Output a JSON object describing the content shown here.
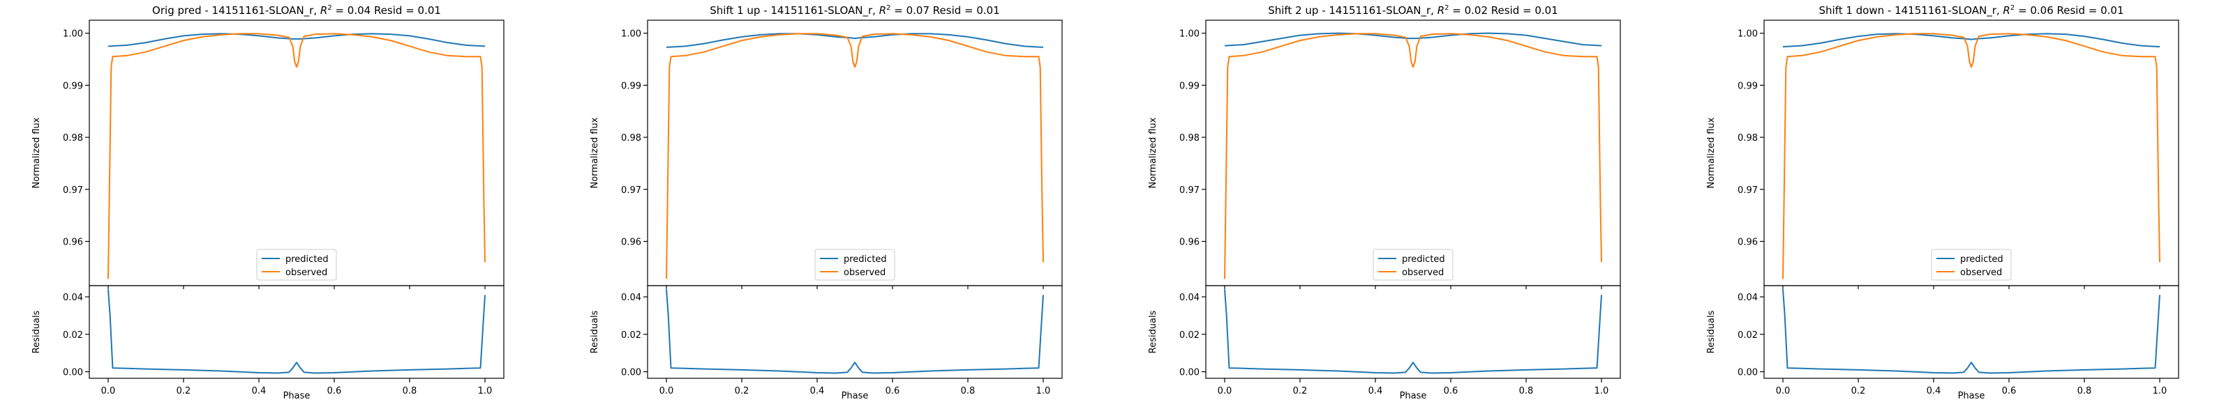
{
  "figure": {
    "xlabel": "Phase",
    "ylabel_top": "Normalized flux",
    "ylabel_bottom": "Residuals",
    "legend": [
      "predicted",
      "observed"
    ],
    "colors": {
      "predicted": "#1f77b4",
      "observed": "#ff7f0e",
      "axes": "#000000"
    }
  },
  "chart_data": [
    {
      "type": "line",
      "title_prefix": "Orig pred - 14151161-SLOAN_r, ",
      "r2_text": "0.04",
      "resid_text": "0.01",
      "xlim": [
        -0.05,
        1.05
      ],
      "ylim_top": [
        0.9515,
        1.0025
      ],
      "ylim_bottom": [
        -0.0035,
        0.046
      ],
      "xticks": [
        "0.0",
        "0.2",
        "0.4",
        "0.6",
        "0.8",
        "1.0"
      ],
      "yticks_top": [
        "0.96",
        "0.97",
        "0.98",
        "0.99",
        "1.00"
      ],
      "yticks_bottom": [
        "0.00",
        "0.02",
        "0.04"
      ],
      "legend_position": "lower center",
      "series": [
        {
          "name": "predicted",
          "x": [
            0,
            0.05,
            0.1,
            0.15,
            0.2,
            0.25,
            0.3,
            0.35,
            0.4,
            0.45,
            0.49,
            0.5,
            0.51,
            0.55,
            0.6,
            0.65,
            0.7,
            0.75,
            0.8,
            0.85,
            0.9,
            0.95,
            1.0
          ],
          "y": [
            0.9975,
            0.9977,
            0.9982,
            0.9989,
            0.9995,
            0.9998,
            0.9999,
            0.9998,
            0.9995,
            0.9991,
            0.9989,
            0.9989,
            0.9989,
            0.9991,
            0.9995,
            0.9998,
            0.9999,
            0.9998,
            0.9995,
            0.9989,
            0.9982,
            0.9977,
            0.9975
          ]
        },
        {
          "name": "observed",
          "x": [
            0,
            0.003,
            0.008,
            0.012,
            0.05,
            0.1,
            0.15,
            0.2,
            0.25,
            0.3,
            0.35,
            0.4,
            0.45,
            0.48,
            0.49,
            0.495,
            0.5,
            0.505,
            0.51,
            0.52,
            0.55,
            0.6,
            0.65,
            0.7,
            0.75,
            0.8,
            0.85,
            0.9,
            0.95,
            0.988,
            0.992,
            0.997,
            1.0
          ],
          "y": [
            0.9528,
            0.968,
            0.9935,
            0.9955,
            0.9957,
            0.9964,
            0.9975,
            0.9986,
            0.9993,
            0.9997,
            0.9999,
            0.9999,
            0.9996,
            0.9992,
            0.9975,
            0.9945,
            0.9935,
            0.9945,
            0.9975,
            0.9994,
            0.9998,
            0.9999,
            0.9997,
            0.9993,
            0.9986,
            0.9975,
            0.9964,
            0.9957,
            0.9955,
            0.9955,
            0.9935,
            0.968,
            0.956
          ]
        },
        {
          "name": "residuals",
          "x": [
            0,
            0.005,
            0.012,
            0.05,
            0.1,
            0.2,
            0.3,
            0.4,
            0.45,
            0.48,
            0.49,
            0.5,
            0.51,
            0.52,
            0.55,
            0.6,
            0.7,
            0.8,
            0.9,
            0.95,
            0.988,
            0.995,
            1.0
          ],
          "y": [
            0.044,
            0.03,
            0.002,
            0.0018,
            0.0015,
            0.001,
            0.0004,
            -0.0005,
            -0.0007,
            -0.0003,
            0.002,
            0.005,
            0.002,
            -0.0003,
            -0.0007,
            -0.0005,
            0.0004,
            0.001,
            0.0015,
            0.0018,
            0.002,
            0.025,
            0.041
          ]
        }
      ]
    },
    {
      "type": "line",
      "title_prefix": "Shift 1 up - 14151161-SLOAN_r, ",
      "r2_text": "0.07",
      "resid_text": "0.01",
      "xlim": [
        -0.05,
        1.05
      ],
      "ylim_top": [
        0.9515,
        1.0025
      ],
      "ylim_bottom": [
        -0.0035,
        0.046
      ],
      "xticks": [
        "0.0",
        "0.2",
        "0.4",
        "0.6",
        "0.8",
        "1.0"
      ],
      "yticks_top": [
        "0.96",
        "0.97",
        "0.98",
        "0.99",
        "1.00"
      ],
      "yticks_bottom": [
        "0.00",
        "0.02",
        "0.04"
      ],
      "legend_position": "lower center",
      "series": [
        {
          "name": "predicted",
          "x": [
            0,
            0.05,
            0.1,
            0.15,
            0.2,
            0.25,
            0.3,
            0.35,
            0.4,
            0.45,
            0.49,
            0.5,
            0.51,
            0.55,
            0.6,
            0.65,
            0.7,
            0.75,
            0.8,
            0.85,
            0.9,
            0.95,
            1.0
          ],
          "y": [
            0.9973,
            0.9975,
            0.998,
            0.9987,
            0.9993,
            0.9997,
            0.9999,
            0.9999,
            0.9997,
            0.9993,
            0.9991,
            0.999,
            0.9991,
            0.9993,
            0.9997,
            0.9999,
            0.9999,
            0.9997,
            0.9993,
            0.9987,
            0.998,
            0.9975,
            0.9973
          ]
        },
        {
          "name": "observed",
          "x": [
            0,
            0.003,
            0.008,
            0.012,
            0.05,
            0.1,
            0.15,
            0.2,
            0.25,
            0.3,
            0.35,
            0.4,
            0.45,
            0.48,
            0.49,
            0.495,
            0.5,
            0.505,
            0.51,
            0.52,
            0.55,
            0.6,
            0.65,
            0.7,
            0.75,
            0.8,
            0.85,
            0.9,
            0.95,
            0.988,
            0.992,
            0.997,
            1.0
          ],
          "y": [
            0.9528,
            0.968,
            0.9935,
            0.9955,
            0.9957,
            0.9964,
            0.9975,
            0.9986,
            0.9993,
            0.9997,
            0.9999,
            0.9999,
            0.9996,
            0.9992,
            0.9975,
            0.9945,
            0.9935,
            0.9945,
            0.9975,
            0.9994,
            0.9998,
            0.9999,
            0.9997,
            0.9993,
            0.9986,
            0.9975,
            0.9964,
            0.9957,
            0.9955,
            0.9955,
            0.9935,
            0.968,
            0.956
          ]
        },
        {
          "name": "residuals",
          "x": [
            0,
            0.005,
            0.012,
            0.05,
            0.1,
            0.2,
            0.3,
            0.4,
            0.45,
            0.48,
            0.49,
            0.5,
            0.51,
            0.52,
            0.55,
            0.6,
            0.7,
            0.8,
            0.9,
            0.95,
            0.988,
            0.995,
            1.0
          ],
          "y": [
            0.044,
            0.03,
            0.002,
            0.0018,
            0.0015,
            0.001,
            0.0004,
            -0.0005,
            -0.0007,
            -0.0003,
            0.002,
            0.005,
            0.002,
            -0.0003,
            -0.0007,
            -0.0005,
            0.0004,
            0.001,
            0.0015,
            0.0018,
            0.002,
            0.025,
            0.041
          ]
        }
      ]
    },
    {
      "type": "line",
      "title_prefix": "Shift 2 up - 14151161-SLOAN_r, ",
      "r2_text": "0.02",
      "resid_text": "0.01",
      "xlim": [
        -0.05,
        1.05
      ],
      "ylim_top": [
        0.9515,
        1.0025
      ],
      "ylim_bottom": [
        -0.0035,
        0.046
      ],
      "xticks": [
        "0.0",
        "0.2",
        "0.4",
        "0.6",
        "0.8",
        "1.0"
      ],
      "yticks_top": [
        "0.96",
        "0.97",
        "0.98",
        "0.99",
        "1.00"
      ],
      "yticks_bottom": [
        "0.00",
        "0.02",
        "0.04"
      ],
      "legend_position": "lower center",
      "series": [
        {
          "name": "predicted",
          "x": [
            0,
            0.05,
            0.1,
            0.15,
            0.2,
            0.25,
            0.3,
            0.35,
            0.4,
            0.45,
            0.49,
            0.5,
            0.51,
            0.55,
            0.6,
            0.65,
            0.7,
            0.75,
            0.8,
            0.85,
            0.9,
            0.95,
            1.0
          ],
          "y": [
            0.9976,
            0.9978,
            0.9984,
            0.999,
            0.9996,
            0.9999,
            1.0,
            0.9999,
            0.9996,
            0.9992,
            0.999,
            0.999,
            0.999,
            0.9992,
            0.9996,
            0.9999,
            1.0,
            0.9999,
            0.9996,
            0.999,
            0.9984,
            0.9978,
            0.9976
          ]
        },
        {
          "name": "observed",
          "x": [
            0,
            0.003,
            0.008,
            0.012,
            0.05,
            0.1,
            0.15,
            0.2,
            0.25,
            0.3,
            0.35,
            0.4,
            0.45,
            0.48,
            0.49,
            0.495,
            0.5,
            0.505,
            0.51,
            0.52,
            0.55,
            0.6,
            0.65,
            0.7,
            0.75,
            0.8,
            0.85,
            0.9,
            0.95,
            0.988,
            0.992,
            0.997,
            1.0
          ],
          "y": [
            0.9528,
            0.968,
            0.9935,
            0.9955,
            0.9957,
            0.9964,
            0.9975,
            0.9986,
            0.9993,
            0.9997,
            0.9999,
            0.9999,
            0.9996,
            0.9992,
            0.9975,
            0.9945,
            0.9935,
            0.9945,
            0.9975,
            0.9994,
            0.9998,
            0.9999,
            0.9997,
            0.9993,
            0.9986,
            0.9975,
            0.9964,
            0.9957,
            0.9955,
            0.9955,
            0.9935,
            0.968,
            0.956
          ]
        },
        {
          "name": "residuals",
          "x": [
            0,
            0.005,
            0.012,
            0.05,
            0.1,
            0.2,
            0.3,
            0.4,
            0.45,
            0.48,
            0.49,
            0.5,
            0.51,
            0.52,
            0.55,
            0.6,
            0.7,
            0.8,
            0.9,
            0.95,
            0.988,
            0.995,
            1.0
          ],
          "y": [
            0.044,
            0.03,
            0.002,
            0.0018,
            0.0015,
            0.001,
            0.0004,
            -0.0005,
            -0.0007,
            -0.0003,
            0.002,
            0.005,
            0.002,
            -0.0003,
            -0.0007,
            -0.0005,
            0.0004,
            0.001,
            0.0015,
            0.0018,
            0.002,
            0.025,
            0.041
          ]
        }
      ]
    },
    {
      "type": "line",
      "title_prefix": "Shift 1 down - 14151161-SLOAN_r, ",
      "r2_text": "0.06",
      "resid_text": "0.01",
      "xlim": [
        -0.05,
        1.05
      ],
      "ylim_top": [
        0.9515,
        1.0025
      ],
      "ylim_bottom": [
        -0.0035,
        0.046
      ],
      "xticks": [
        "0.0",
        "0.2",
        "0.4",
        "0.6",
        "0.8",
        "1.0"
      ],
      "yticks_top": [
        "0.96",
        "0.97",
        "0.98",
        "0.99",
        "1.00"
      ],
      "yticks_bottom": [
        "0.00",
        "0.02",
        "0.04"
      ],
      "legend_position": "lower center",
      "series": [
        {
          "name": "predicted",
          "x": [
            0,
            0.05,
            0.1,
            0.15,
            0.2,
            0.25,
            0.3,
            0.35,
            0.4,
            0.45,
            0.49,
            0.5,
            0.51,
            0.55,
            0.6,
            0.65,
            0.7,
            0.75,
            0.8,
            0.85,
            0.9,
            0.95,
            1.0
          ],
          "y": [
            0.9974,
            0.9976,
            0.9981,
            0.9988,
            0.9994,
            0.9998,
            0.9999,
            0.9998,
            0.9995,
            0.9991,
            0.9989,
            0.9988,
            0.9989,
            0.9991,
            0.9995,
            0.9998,
            0.9999,
            0.9998,
            0.9994,
            0.9988,
            0.9981,
            0.9976,
            0.9974
          ]
        },
        {
          "name": "observed",
          "x": [
            0,
            0.003,
            0.008,
            0.012,
            0.05,
            0.1,
            0.15,
            0.2,
            0.25,
            0.3,
            0.35,
            0.4,
            0.45,
            0.48,
            0.49,
            0.495,
            0.5,
            0.505,
            0.51,
            0.52,
            0.55,
            0.6,
            0.65,
            0.7,
            0.75,
            0.8,
            0.85,
            0.9,
            0.95,
            0.988,
            0.992,
            0.997,
            1.0
          ],
          "y": [
            0.9528,
            0.968,
            0.9935,
            0.9955,
            0.9957,
            0.9964,
            0.9975,
            0.9986,
            0.9993,
            0.9997,
            0.9999,
            0.9999,
            0.9996,
            0.9992,
            0.9975,
            0.9945,
            0.9935,
            0.9945,
            0.9975,
            0.9994,
            0.9998,
            0.9999,
            0.9997,
            0.9993,
            0.9986,
            0.9975,
            0.9964,
            0.9957,
            0.9955,
            0.9955,
            0.9935,
            0.968,
            0.956
          ]
        },
        {
          "name": "residuals",
          "x": [
            0,
            0.005,
            0.012,
            0.05,
            0.1,
            0.2,
            0.3,
            0.4,
            0.45,
            0.48,
            0.49,
            0.5,
            0.51,
            0.52,
            0.55,
            0.6,
            0.7,
            0.8,
            0.9,
            0.95,
            0.988,
            0.995,
            1.0
          ],
          "y": [
            0.044,
            0.03,
            0.002,
            0.0018,
            0.0015,
            0.001,
            0.0004,
            -0.0005,
            -0.0007,
            -0.0003,
            0.002,
            0.005,
            0.002,
            -0.0003,
            -0.0007,
            -0.0005,
            0.0004,
            0.001,
            0.0015,
            0.0018,
            0.002,
            0.025,
            0.041
          ]
        }
      ]
    }
  ]
}
